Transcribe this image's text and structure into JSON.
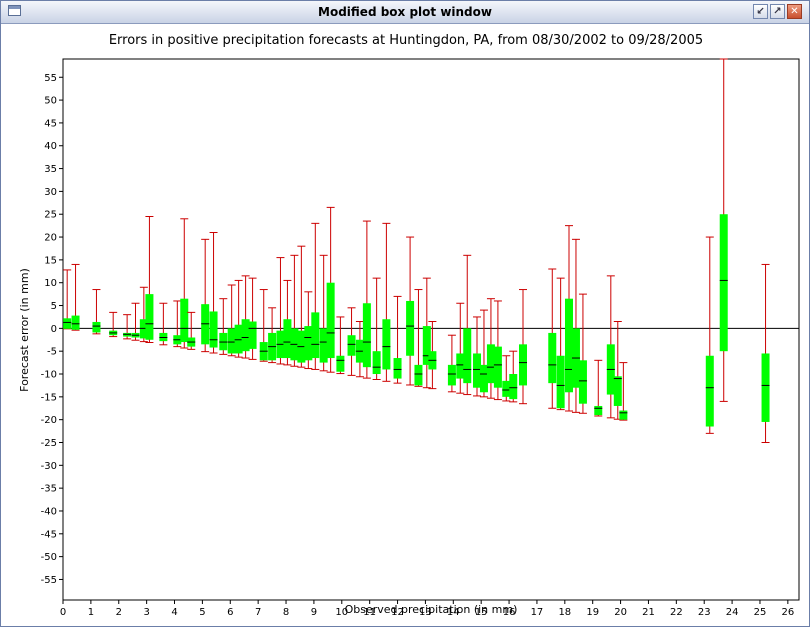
{
  "window": {
    "title": "Modified box plot window",
    "buttons": {
      "iconify": "↙",
      "maximize": "↗",
      "close": "✕"
    }
  },
  "colors": {
    "box": "#00ff00",
    "whisker": "#cc0000",
    "median": "#000000",
    "zero_line": "#000000"
  },
  "chart_data": {
    "type": "box",
    "title": "Errors in positive precipitation forecasts at Huntingdon, PA, from 08/30/2002 to 09/28/2005",
    "xlabel": "Observed precipitation (in mm)",
    "ylabel": "Forecast error (in mm)",
    "xlim": [
      0,
      26.4
    ],
    "ylim": [
      -59.5,
      59
    ],
    "xticks": [
      0,
      1,
      2,
      3,
      4,
      5,
      6,
      7,
      8,
      9,
      10,
      11,
      12,
      13,
      14,
      15,
      16,
      17,
      18,
      19,
      20,
      21,
      22,
      23,
      24,
      25,
      26
    ],
    "yticks": [
      55,
      50,
      45,
      40,
      35,
      30,
      25,
      20,
      15,
      10,
      5,
      0,
      -5,
      -10,
      -15,
      -20,
      -25,
      -30,
      -35,
      -40,
      -45,
      -50,
      -55
    ],
    "reference_line": 0,
    "boxes": [
      {
        "x": 0.15,
        "min": -0.1,
        "q1": -0.1,
        "median": 1.3,
        "q3": 2.2,
        "max": 12.8
      },
      {
        "x": 0.45,
        "min": -0.4,
        "q1": -0.3,
        "median": 1.0,
        "q3": 2.8,
        "max": 14.0
      },
      {
        "x": 1.2,
        "min": -1.2,
        "q1": -0.9,
        "median": 0.5,
        "q3": 1.4,
        "max": 8.5
      },
      {
        "x": 1.8,
        "min": -1.8,
        "q1": -1.5,
        "median": -1.0,
        "q3": -0.5,
        "max": 3.5
      },
      {
        "x": 2.3,
        "min": -2.3,
        "q1": -1.8,
        "median": -1.3,
        "q3": -1.0,
        "max": 3.0
      },
      {
        "x": 2.6,
        "min": -2.6,
        "q1": -2.0,
        "median": -1.5,
        "q3": -1.0,
        "max": 5.5
      },
      {
        "x": 2.9,
        "min": -2.9,
        "q1": -2.2,
        "median": 0.0,
        "q3": 2.0,
        "max": 9.0
      },
      {
        "x": 3.1,
        "min": -3.1,
        "q1": -2.5,
        "median": 1.0,
        "q3": 7.5,
        "max": 24.5
      },
      {
        "x": 3.6,
        "min": -3.6,
        "q1": -2.8,
        "median": -2.0,
        "q3": -1.0,
        "max": 5.5
      },
      {
        "x": 4.1,
        "min": -4.0,
        "q1": -3.5,
        "median": -2.5,
        "q3": -1.5,
        "max": 6.0
      },
      {
        "x": 4.35,
        "min": -4.3,
        "q1": -3.0,
        "median": 0.0,
        "q3": 6.5,
        "max": 24.0
      },
      {
        "x": 4.6,
        "min": -4.6,
        "q1": -4.0,
        "median": -3.0,
        "q3": -2.0,
        "max": 3.5
      },
      {
        "x": 5.1,
        "min": -5.1,
        "q1": -3.5,
        "median": 1.0,
        "q3": 5.3,
        "max": 19.5
      },
      {
        "x": 5.4,
        "min": -5.4,
        "q1": -4.2,
        "median": -2.5,
        "q3": 3.7,
        "max": 21.0
      },
      {
        "x": 5.75,
        "min": -5.7,
        "q1": -4.8,
        "median": -3.0,
        "q3": -1.0,
        "max": 6.5
      },
      {
        "x": 6.05,
        "min": -6.0,
        "q1": -5.5,
        "median": -3.0,
        "q3": 0.0,
        "max": 9.5
      },
      {
        "x": 6.3,
        "min": -6.3,
        "q1": -5.5,
        "median": -2.5,
        "q3": 0.8,
        "max": 10.5
      },
      {
        "x": 6.55,
        "min": -6.5,
        "q1": -5.0,
        "median": -2.0,
        "q3": 2.0,
        "max": 11.5
      },
      {
        "x": 6.8,
        "min": -6.8,
        "q1": -4.5,
        "median": 0.0,
        "q3": 1.5,
        "max": 11.0
      },
      {
        "x": 7.2,
        "min": -7.2,
        "q1": -7.0,
        "median": -5.0,
        "q3": -3.0,
        "max": 8.5
      },
      {
        "x": 7.5,
        "min": -7.5,
        "q1": -7.0,
        "median": -4.0,
        "q3": -1.0,
        "max": 4.5
      },
      {
        "x": 7.8,
        "min": -7.8,
        "q1": -6.5,
        "median": -3.5,
        "q3": -0.5,
        "max": 15.5
      },
      {
        "x": 8.05,
        "min": -8.0,
        "q1": -6.5,
        "median": -3.0,
        "q3": 2.0,
        "max": 10.5
      },
      {
        "x": 8.3,
        "min": -8.3,
        "q1": -7.0,
        "median": -3.5,
        "q3": 0.0,
        "max": 16.0
      },
      {
        "x": 8.55,
        "min": -8.5,
        "q1": -7.5,
        "median": -4.0,
        "q3": -0.5,
        "max": 18.0
      },
      {
        "x": 8.8,
        "min": -8.8,
        "q1": -7.0,
        "median": -2.0,
        "q3": 0.5,
        "max": 8.0
      },
      {
        "x": 9.05,
        "min": -9.0,
        "q1": -6.5,
        "median": -3.5,
        "q3": 3.5,
        "max": 23.0
      },
      {
        "x": 9.35,
        "min": -9.3,
        "q1": -7.5,
        "median": -3.0,
        "q3": 0.0,
        "max": 16.0
      },
      {
        "x": 9.6,
        "min": -9.6,
        "q1": -6.5,
        "median": -1.0,
        "q3": 10.0,
        "max": 26.5
      },
      {
        "x": 9.95,
        "min": -9.9,
        "q1": -9.5,
        "median": -7.0,
        "q3": -6.0,
        "max": 2.5
      },
      {
        "x": 10.35,
        "min": -10.3,
        "q1": -6.0,
        "median": -3.5,
        "q3": -1.5,
        "max": 4.5
      },
      {
        "x": 10.65,
        "min": -10.6,
        "q1": -7.5,
        "median": -5.0,
        "q3": -2.5,
        "max": 1.5
      },
      {
        "x": 10.9,
        "min": -10.9,
        "q1": -8.5,
        "median": -3.0,
        "q3": 5.5,
        "max": 23.5
      },
      {
        "x": 11.25,
        "min": -11.2,
        "q1": -10.0,
        "median": -8.5,
        "q3": -5.0,
        "max": 11.0
      },
      {
        "x": 11.6,
        "min": -11.6,
        "q1": -9.0,
        "median": -4.0,
        "q3": 2.0,
        "max": 23.0
      },
      {
        "x": 12.0,
        "min": -12.0,
        "q1": -11.0,
        "median": -9.0,
        "q3": -6.5,
        "max": 7.0
      },
      {
        "x": 12.45,
        "min": -12.4,
        "q1": -6.0,
        "median": 0.5,
        "q3": 6.0,
        "max": 20.0
      },
      {
        "x": 12.75,
        "min": -12.7,
        "q1": -12.5,
        "median": -10.0,
        "q3": -8.0,
        "max": 8.5
      },
      {
        "x": 13.05,
        "min": -13.0,
        "q1": -8.0,
        "median": -6.0,
        "q3": 0.5,
        "max": 11.0
      },
      {
        "x": 13.25,
        "min": -13.2,
        "q1": -9.0,
        "median": -7.0,
        "q3": -5.0,
        "max": 1.5
      },
      {
        "x": 13.95,
        "min": -13.9,
        "q1": -12.5,
        "median": -10.0,
        "q3": -8.0,
        "max": -1.5
      },
      {
        "x": 14.25,
        "min": -14.2,
        "q1": -11.0,
        "median": -8.0,
        "q3": -5.5,
        "max": 5.5
      },
      {
        "x": 14.5,
        "min": -14.5,
        "q1": -12.0,
        "median": -9.0,
        "q3": 0.0,
        "max": 16.0
      },
      {
        "x": 14.85,
        "min": -14.8,
        "q1": -13.0,
        "median": -9.0,
        "q3": -5.5,
        "max": 2.5
      },
      {
        "x": 15.1,
        "min": -15.0,
        "q1": -14.0,
        "median": -10.0,
        "q3": -8.0,
        "max": 4.0
      },
      {
        "x": 15.35,
        "min": -15.3,
        "q1": -12.0,
        "median": -8.5,
        "q3": -3.5,
        "max": 6.5
      },
      {
        "x": 15.6,
        "min": -15.6,
        "q1": -13.0,
        "median": -8.0,
        "q3": -4.0,
        "max": 6.0
      },
      {
        "x": 15.9,
        "min": -15.9,
        "q1": -15.0,
        "median": -13.5,
        "q3": -11.5,
        "max": -6.0
      },
      {
        "x": 16.15,
        "min": -16.1,
        "q1": -15.5,
        "median": -13.0,
        "q3": -10.0,
        "max": -5.0
      },
      {
        "x": 16.5,
        "min": -16.5,
        "q1": -12.5,
        "median": -7.5,
        "q3": -3.5,
        "max": 8.5
      },
      {
        "x": 17.55,
        "min": -17.5,
        "q1": -12.0,
        "median": -8.0,
        "q3": -1.0,
        "max": 13.0
      },
      {
        "x": 17.85,
        "min": -17.8,
        "q1": -17.5,
        "median": -12.5,
        "q3": -6.0,
        "max": 11.0
      },
      {
        "x": 18.15,
        "min": -18.1,
        "q1": -14.0,
        "median": -9.0,
        "q3": 6.5,
        "max": 22.5
      },
      {
        "x": 18.4,
        "min": -18.4,
        "q1": -13.0,
        "median": -6.5,
        "q3": 0.0,
        "max": 19.5
      },
      {
        "x": 18.65,
        "min": -18.6,
        "q1": -16.5,
        "median": -11.5,
        "q3": -7.0,
        "max": 7.5
      },
      {
        "x": 19.2,
        "min": -19.2,
        "q1": -19.0,
        "median": -17.5,
        "q3": -17.0,
        "max": -7.0
      },
      {
        "x": 19.65,
        "min": -19.6,
        "q1": -14.5,
        "median": -9.0,
        "q3": -3.5,
        "max": 11.5
      },
      {
        "x": 19.9,
        "min": -19.9,
        "q1": -17.0,
        "median": -11.0,
        "q3": -10.5,
        "max": 1.5
      },
      {
        "x": 20.1,
        "min": -20.1,
        "q1": -20.0,
        "median": -18.5,
        "q3": -18.0,
        "max": -7.5
      },
      {
        "x": 23.2,
        "min": -23.0,
        "q1": -21.5,
        "median": -13.0,
        "q3": -6.0,
        "max": 20.0
      },
      {
        "x": 23.7,
        "min": -16.0,
        "q1": -5.0,
        "median": 10.5,
        "q3": 25.0,
        "max": 59.0
      },
      {
        "x": 25.2,
        "min": -25.0,
        "q1": -20.5,
        "median": -12.5,
        "q3": -5.5,
        "max": 14.0
      }
    ]
  }
}
